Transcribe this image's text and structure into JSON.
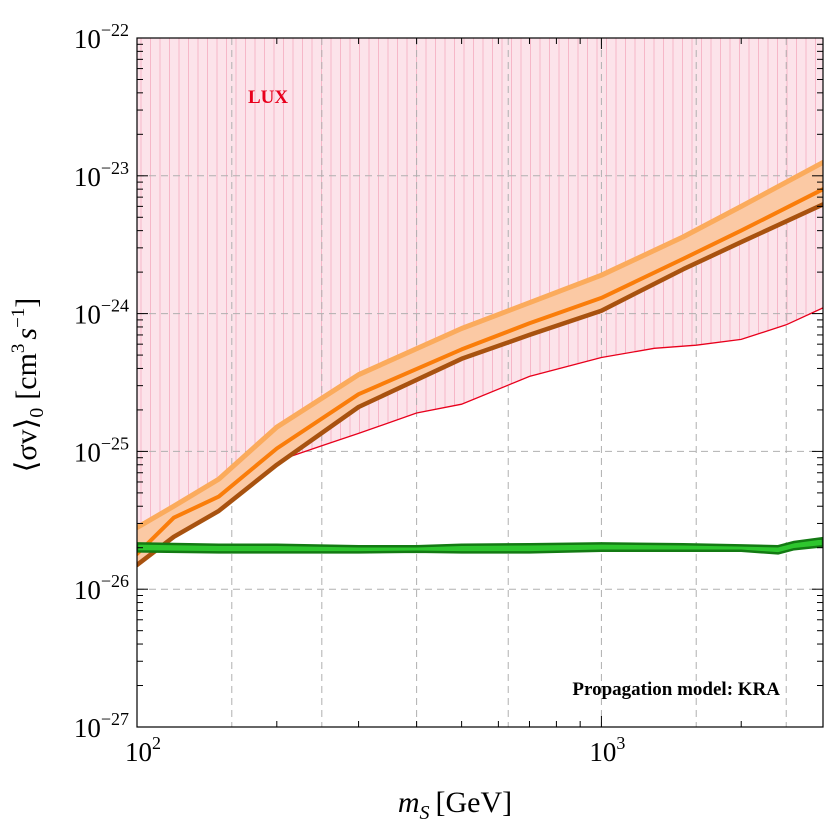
{
  "chart_data": {
    "type": "line",
    "xscale": "log",
    "yscale": "log",
    "xlim": [
      100,
      3000
    ],
    "ylim": [
      1e-27,
      1e-22
    ],
    "xlabel_italic": "m",
    "xlabel_sub": "S",
    "xlabel_unit": "[GeV]",
    "ylabel_main": "⟨σv⟩",
    "ylabel_sub": "0",
    "ylabel_unit_prefix": "[cm",
    "ylabel_unit_exp1": "3",
    "ylabel_unit_s": "s",
    "ylabel_unit_exp2": "−1",
    "ylabel_unit_suffix": "]",
    "x_ticks": [
      {
        "value": 100,
        "base": "10",
        "exp": "2"
      },
      {
        "value": 1000,
        "base": "10",
        "exp": "3"
      }
    ],
    "y_ticks": [
      {
        "value": 1e-27,
        "base": "10",
        "exp": "−27"
      },
      {
        "value": 1e-26,
        "base": "10",
        "exp": "−26"
      },
      {
        "value": 1e-25,
        "base": "10",
        "exp": "−25"
      },
      {
        "value": 1e-24,
        "base": "10",
        "exp": "−24"
      },
      {
        "value": 1e-23,
        "base": "10",
        "exp": "−23"
      },
      {
        "value": 1e-22,
        "base": "10",
        "exp": "−22"
      }
    ],
    "grid_x": [
      160,
      250,
      400,
      630,
      1600,
      2500
    ],
    "annotations": {
      "lux_label": "LUX",
      "propagation_label": "Propagation model: KRA"
    },
    "colors": {
      "lux_fill": "#fce3ea",
      "lux_hatch": "#f6b7c8",
      "lux_edge": "#e8001c",
      "band_fill": "#fbc9a4",
      "band_upper": "#fbab5c",
      "central": "#fa7d0a",
      "band_lower": "#a8520f",
      "thermal_fill": "#2ec62e",
      "thermal_edge": "#137a13",
      "grid": "#b0b0b0"
    },
    "series": [
      {
        "name": "LUX excluded region (lower boundary)",
        "x": [
          100,
          120,
          150,
          200,
          250,
          300,
          400,
          500,
          700,
          1000,
          1300,
          1600,
          2000,
          2500,
          3000
        ],
        "y": [
          2.1e-26,
          2.5e-26,
          4.5e-26,
          8.5e-26,
          1.1e-25,
          1.35e-25,
          1.9e-25,
          2.2e-25,
          3.5e-25,
          4.8e-25,
          5.6e-25,
          5.9e-25,
          6.5e-25,
          8.3e-25,
          1.1e-24
        ]
      },
      {
        "name": "Upper band edge",
        "x": [
          100,
          120,
          150,
          200,
          300,
          500,
          700,
          1000,
          1500,
          2000,
          3000
        ],
        "y": [
          2.8e-26,
          4e-26,
          6.3e-26,
          1.5e-25,
          3.6e-25,
          7.8e-25,
          1.2e-24,
          1.9e-24,
          3.6e-24,
          6e-24,
          1.25e-23
        ]
      },
      {
        "name": "Central line",
        "x": [
          100,
          120,
          150,
          200,
          300,
          500,
          700,
          1000,
          1500,
          2000,
          3000
        ],
        "y": [
          1.8e-26,
          3.3e-26,
          4.7e-26,
          1.05e-25,
          2.6e-25,
          5.5e-25,
          8.5e-25,
          1.3e-24,
          2.5e-24,
          4e-24,
          8e-24
        ]
      },
      {
        "name": "Lower band edge",
        "x": [
          100,
          120,
          150,
          200,
          300,
          500,
          700,
          1000,
          1500,
          2000,
          3000
        ],
        "y": [
          1.5e-26,
          2.4e-26,
          3.7e-26,
          8e-26,
          2.1e-25,
          4.7e-25,
          7e-25,
          1.05e-24,
          2.1e-24,
          3.3e-24,
          6.2e-24
        ]
      },
      {
        "name": "Thermal relic upper edge",
        "x": [
          100,
          150,
          200,
          300,
          400,
          500,
          700,
          1000,
          1500,
          2000,
          2400,
          2600,
          3000
        ],
        "y": [
          2.15e-26,
          2.1e-26,
          2.1e-26,
          2.05e-26,
          2.05e-26,
          2.1e-26,
          2.12e-26,
          2.15e-26,
          2.12e-26,
          2.08e-26,
          2.05e-26,
          2.2e-26,
          2.35e-26
        ]
      },
      {
        "name": "Thermal relic lower edge",
        "x": [
          100,
          150,
          200,
          300,
          400,
          500,
          700,
          1000,
          1500,
          2000,
          2400,
          2600,
          3000
        ],
        "y": [
          1.88e-26,
          1.85e-26,
          1.85e-26,
          1.85e-26,
          1.87e-26,
          1.85e-26,
          1.85e-26,
          1.9e-26,
          1.9e-26,
          1.9e-26,
          1.82e-26,
          1.95e-26,
          2.05e-26
        ]
      }
    ]
  }
}
